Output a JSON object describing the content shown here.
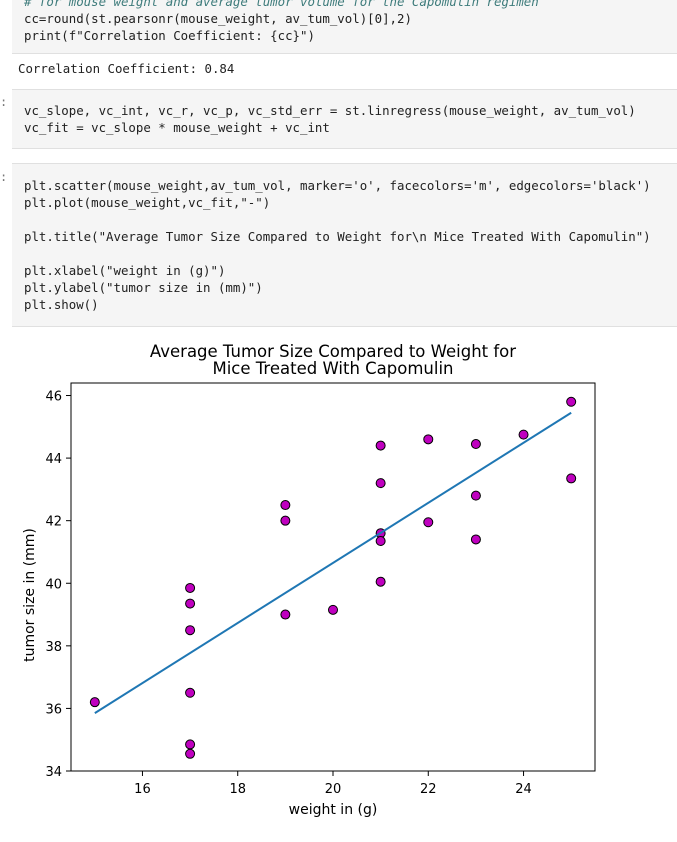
{
  "cells": {
    "corr": {
      "comment": "# for mouse weight and average tumor volume for the Capomulin regimen",
      "line1": "cc=round(st.pearsonr(mouse_weight, av_tum_vol)[0],2)",
      "line2": "print(f\"Correlation Coefficient: {cc}\")"
    },
    "corr_output": "Correlation Coefficient: 0.84",
    "regress": {
      "prompt": ":",
      "line1": "vc_slope, vc_int, vc_r, vc_p, vc_std_err = st.linregress(mouse_weight, av_tum_vol)",
      "line2": "vc_fit = vc_slope * mouse_weight + vc_int"
    },
    "plot_code": {
      "prompt": ":",
      "line1": "plt.scatter(mouse_weight,av_tum_vol, marker='o', facecolors='m', edgecolors='black')",
      "line2": "plt.plot(mouse_weight,vc_fit,\"-\")",
      "line3": "",
      "line4": "plt.title(\"Average Tumor Size Compared to Weight for\\n Mice Treated With Capomulin\")",
      "line5": "",
      "line6": "plt.xlabel(\"weight in (g)\")",
      "line7": "plt.ylabel(\"tumor size in (mm)\")",
      "line8": "plt.show()"
    }
  },
  "chart_data": {
    "type": "scatter",
    "title_line1": "Average Tumor Size Compared to Weight for",
    "title_line2": "Mice Treated With Capomulin",
    "xlabel": "weight in (g)",
    "ylabel": "tumor size in (mm)",
    "xlim": [
      14.5,
      25.5
    ],
    "ylim": [
      34,
      46.4
    ],
    "xticks": [
      16,
      18,
      20,
      22,
      24
    ],
    "yticks": [
      34,
      36,
      38,
      40,
      42,
      44,
      46
    ],
    "marker_face": "#bf00bf",
    "marker_edge": "#000000",
    "line_color": "#1f77b4",
    "points": [
      [
        15,
        36.2
      ],
      [
        17,
        39.85
      ],
      [
        17,
        39.35
      ],
      [
        17,
        38.5
      ],
      [
        17,
        36.5
      ],
      [
        17,
        34.85
      ],
      [
        17,
        34.55
      ],
      [
        19,
        42.5
      ],
      [
        19,
        42.0
      ],
      [
        19,
        39.0
      ],
      [
        20,
        39.15
      ],
      [
        21,
        44.4
      ],
      [
        21,
        43.2
      ],
      [
        21,
        41.6
      ],
      [
        21,
        41.35
      ],
      [
        21,
        40.05
      ],
      [
        22,
        44.6
      ],
      [
        22,
        41.95
      ],
      [
        23,
        44.45
      ],
      [
        23,
        42.8
      ],
      [
        23,
        41.4
      ],
      [
        24,
        44.75
      ],
      [
        25,
        45.8
      ],
      [
        25,
        43.35
      ]
    ],
    "fit": [
      [
        15,
        35.85
      ],
      [
        25,
        45.45
      ]
    ]
  }
}
